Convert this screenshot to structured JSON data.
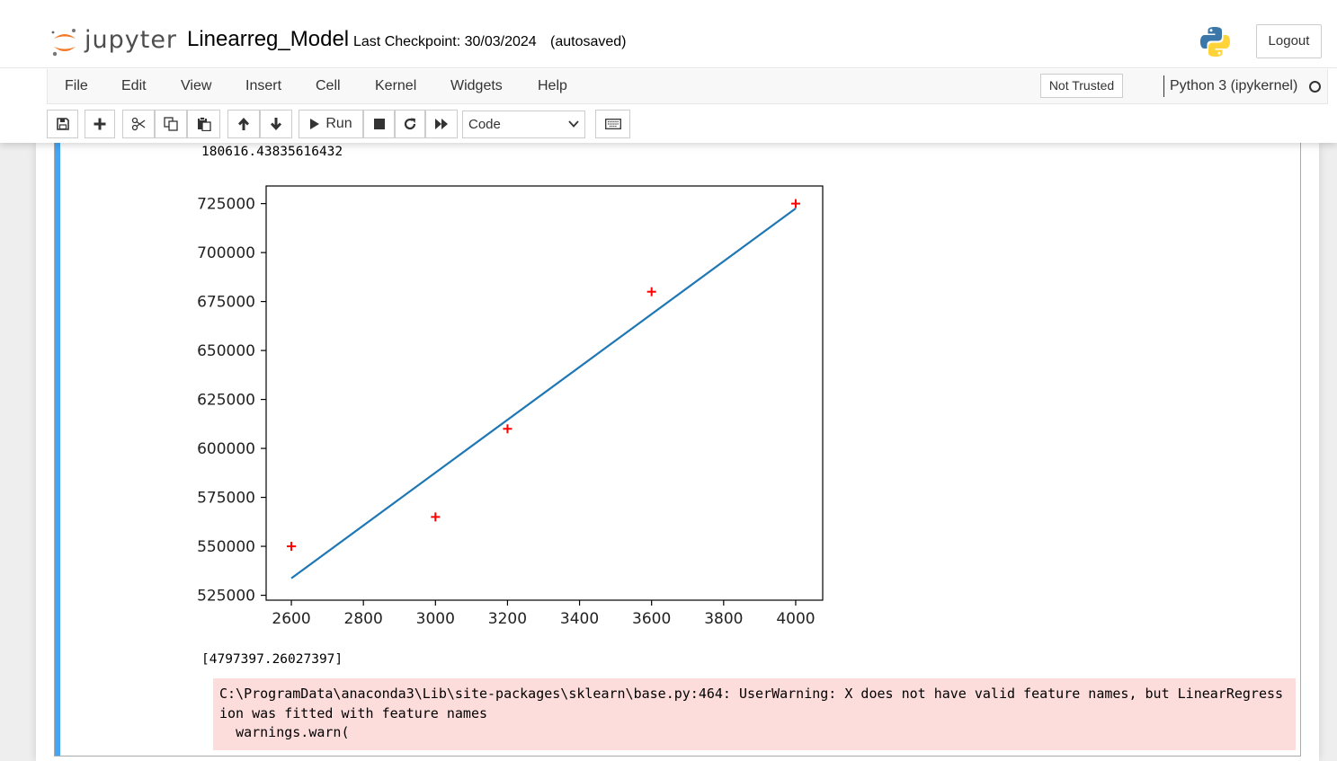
{
  "header": {
    "logo_text": "jupyter",
    "notebook_name": "Linearreg_Model",
    "checkpoint": "Last Checkpoint: 30/03/2024",
    "autosave": "(autosaved)",
    "logout_label": "Logout"
  },
  "menubar": {
    "items": [
      "File",
      "Edit",
      "View",
      "Insert",
      "Cell",
      "Kernel",
      "Widgets",
      "Help"
    ],
    "trust_label": "Not Trusted",
    "kernel_name": "Python 3 (ipykernel)"
  },
  "toolbar": {
    "run_label": "Run",
    "cell_type": "Code",
    "icons": [
      "save-icon",
      "plus-icon",
      "cut-icon",
      "copy-icon",
      "paste-icon",
      "arrow-up-icon",
      "arrow-down-icon",
      "play-icon",
      "stop-icon",
      "restart-icon",
      "fast-forward-icon",
      "keyboard-icon"
    ]
  },
  "output": {
    "line1": "180616.43835616432",
    "prediction": "[4797397.26027397]",
    "stderr": "C:\\ProgramData\\anaconda3\\Lib\\site-packages\\sklearn\\base.py:464: UserWarning: X does not have valid feature names, but LinearRegression was fitted with feature names\n  warnings.warn("
  },
  "chart_data": {
    "type": "scatter",
    "title": "",
    "xlabel": "",
    "ylabel": "",
    "xlim": [
      2530,
      4075
    ],
    "ylim": [
      522500,
      734000
    ],
    "xticks": [
      2600,
      2800,
      3000,
      3200,
      3400,
      3600,
      3800,
      4000
    ],
    "yticks": [
      525000,
      550000,
      575000,
      600000,
      625000,
      650000,
      675000,
      700000,
      725000
    ],
    "grid": false,
    "series": [
      {
        "kind": "scatter",
        "marker": "+",
        "color": "#ff0000",
        "x": [
          2600,
          3000,
          3200,
          3600,
          4000
        ],
        "y": [
          550000,
          565000,
          610000,
          680000,
          725000
        ]
      },
      {
        "kind": "line",
        "color": "#1f77b4",
        "x": [
          2600,
          4000
        ],
        "y": [
          533664,
          722527
        ]
      }
    ]
  },
  "colors": {
    "accent": "#42a5f5",
    "stderr_bg": "#fddcdc",
    "jupyter_orange": "#f37726"
  }
}
